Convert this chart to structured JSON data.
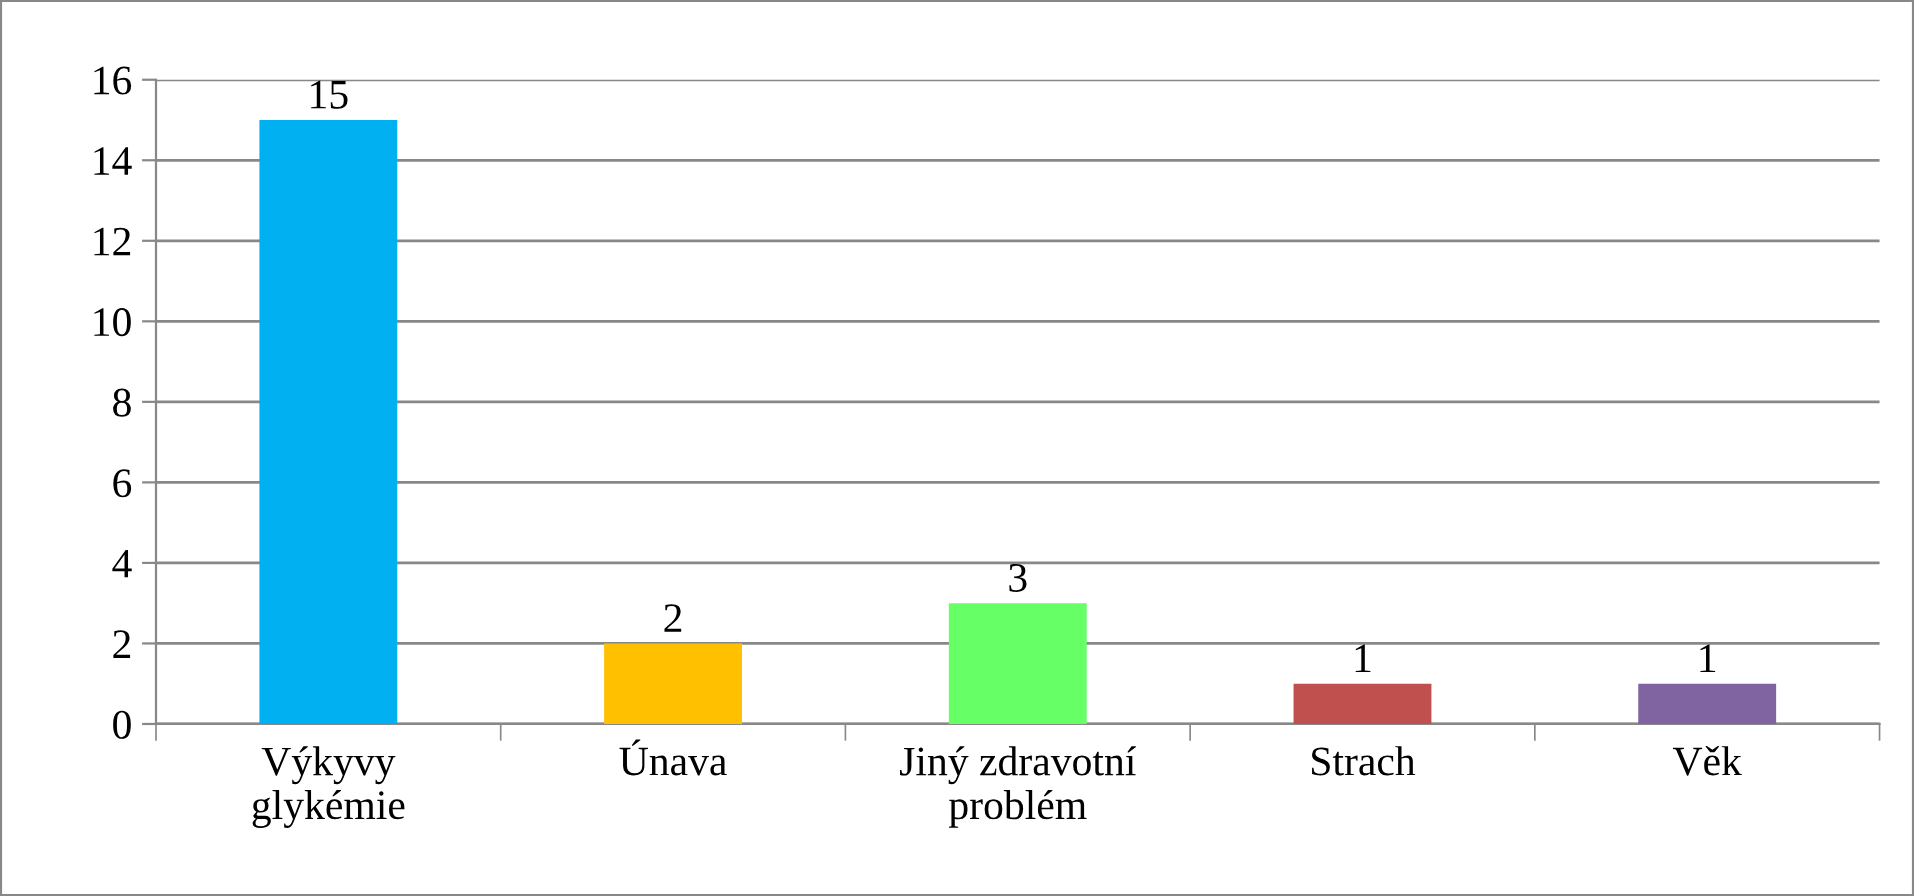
{
  "chart_data": {
    "type": "bar",
    "categories": [
      "Výkyvy\nglykémie",
      "Únava",
      "Jiný zdravotní\nproblém",
      "Strach",
      "Věk"
    ],
    "values": [
      15,
      2,
      3,
      1,
      1
    ],
    "colors": [
      "#00b0f0",
      "#ffc000",
      "#66ff66",
      "#c0504d",
      "#8064a2"
    ],
    "ylim": [
      0,
      16
    ],
    "yticks": [
      0,
      2,
      4,
      6,
      8,
      10,
      12,
      14,
      16
    ],
    "grid": "y",
    "data_labels": true,
    "legend": false
  }
}
